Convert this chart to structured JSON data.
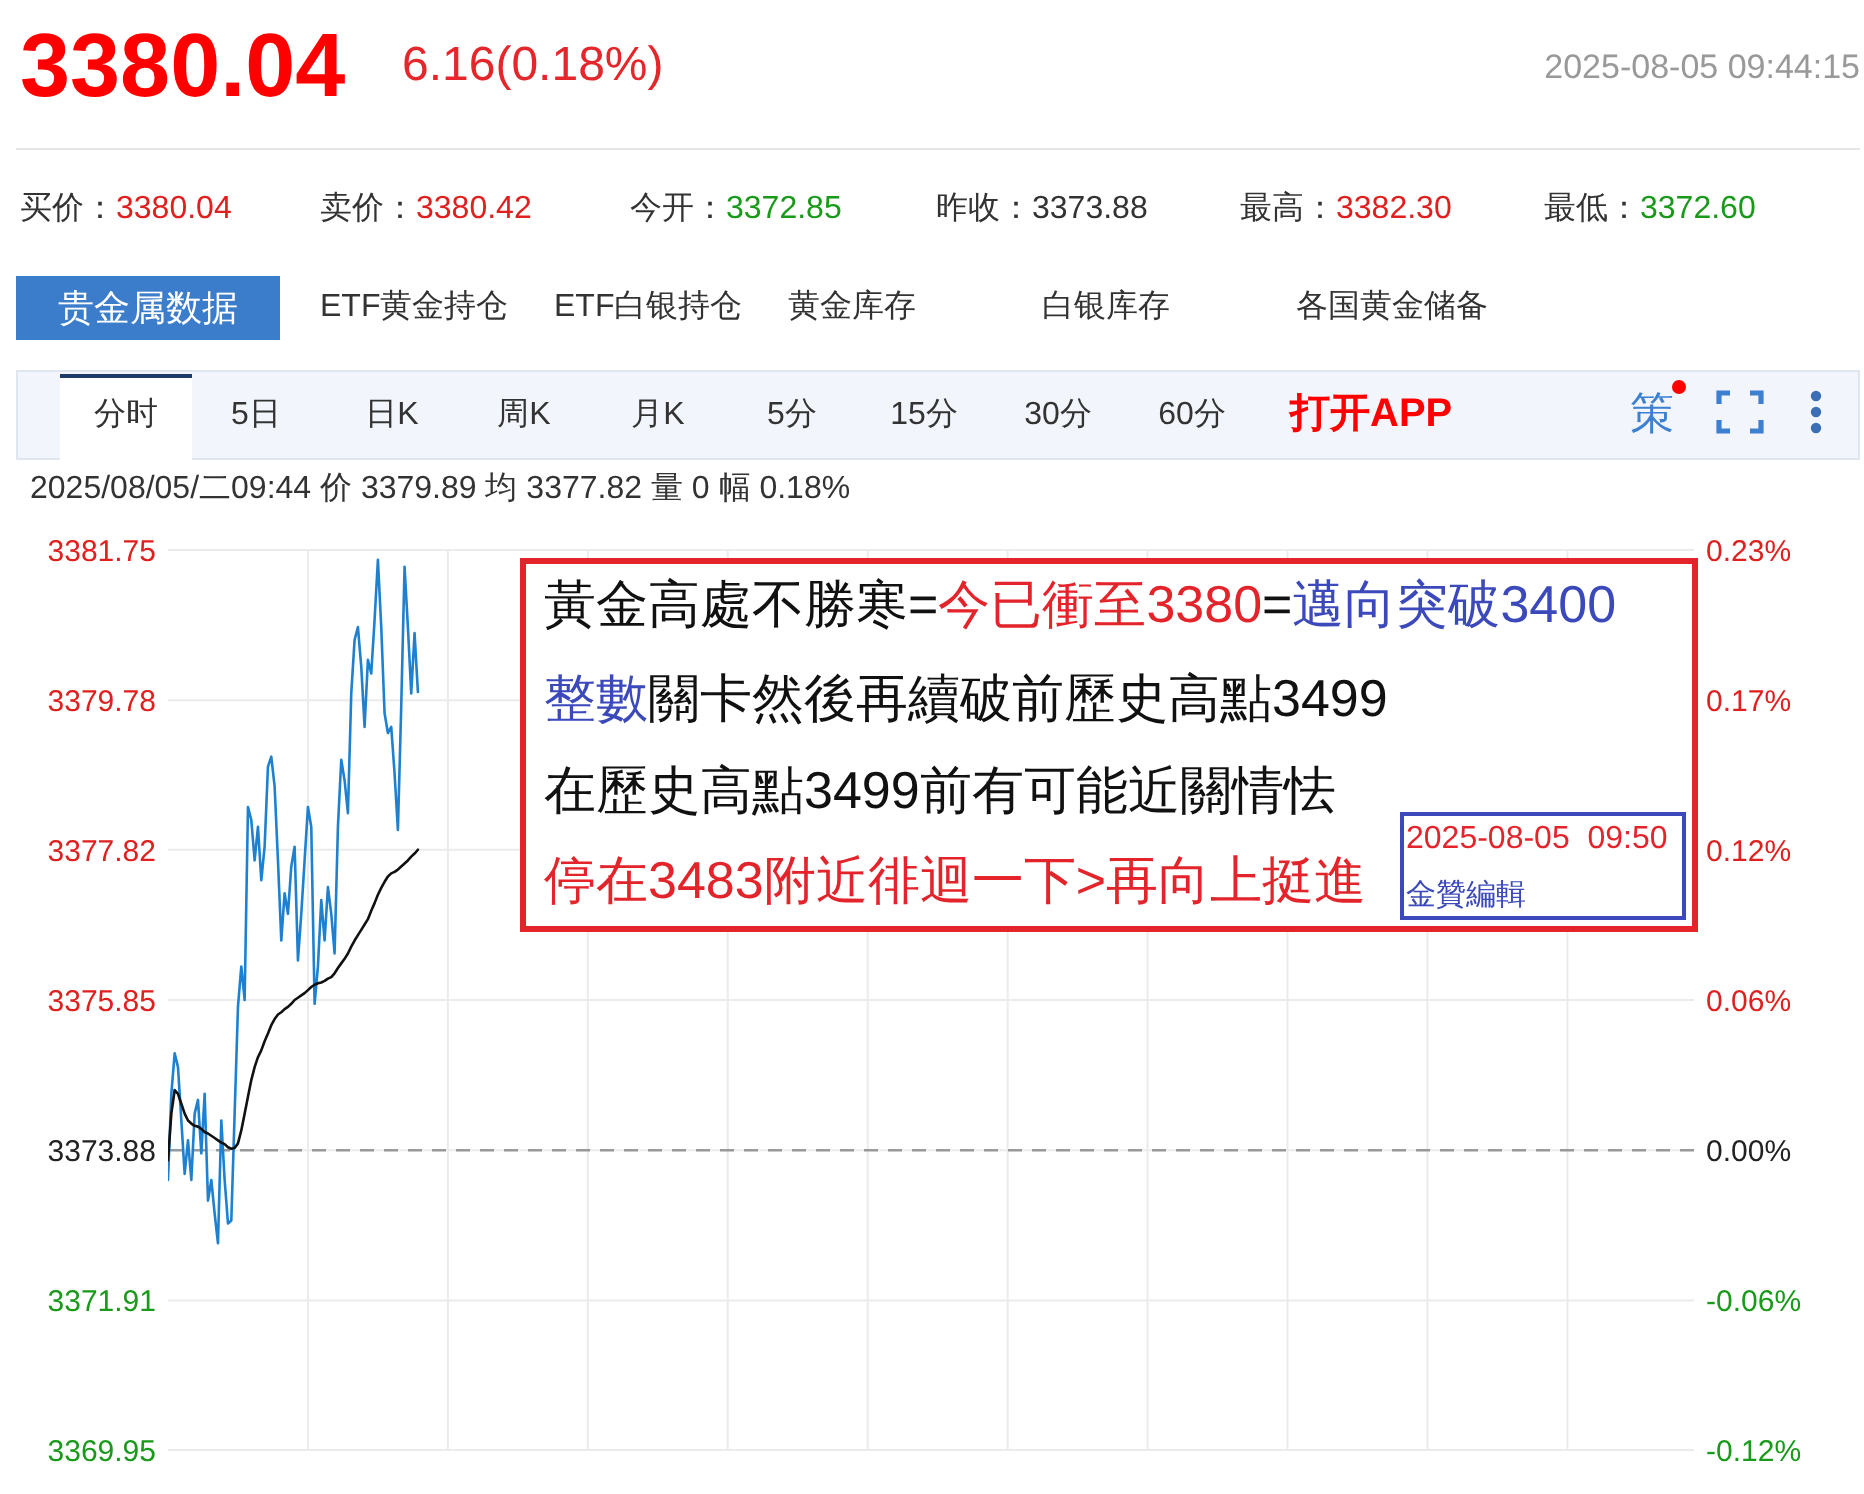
{
  "chart_data": [
    {
      "type": "other",
      "title": "3380.04",
      "subtitle": "6.16(0.18%)",
      "annotations": [
        "2025-08-05 09:44:15",
        "买价：",
        "3380.04",
        "卖价：",
        "3380.42",
        "今开：",
        "3372.85",
        "昨收：",
        "3373.88",
        "最高：",
        "3382.30",
        "最低：",
        "3372.60",
        "贵金属数据",
        "ETF黄金持仓",
        "ETF白银持仓",
        "黄金库存",
        "白银库存",
        "各国黄金储备",
        "分时",
        "5日",
        "日K",
        "周K",
        "月K",
        "5分",
        "15分",
        "30分",
        "60分",
        "打开APP",
        "策"
      ]
    },
    {
      "type": "line",
      "annotations": [
        "2025/08/05/二09:44 价 3379.89 均 3377.82 量 0 幅 0.18%",
        "黃金高處不勝寒=",
        "今已衝至3380",
        "=",
        "邁向突破3400",
        "整數",
        "關卡然後再續破前歷史高點3499",
        "在歷史高點3499前有可能近關情怯",
        "停在3483附近徘迴一下>再向上挺進",
        "2025-08-05  09:50",
        "金贊編輯"
      ],
      "categories": [
        null,
        null,
        null,
        null,
        null,
        null,
        null,
        null,
        null,
        null,
        null,
        null,
        null,
        null,
        null,
        null,
        null,
        null,
        null,
        null,
        null,
        null,
        null,
        null,
        null,
        null,
        null,
        null,
        null,
        null,
        null,
        null,
        null,
        null,
        null,
        null,
        null,
        null,
        null,
        null,
        null,
        null,
        null,
        null,
        null,
        null,
        null,
        null,
        null,
        null,
        null,
        null,
        null,
        null,
        null,
        null,
        null,
        null,
        null,
        null,
        null,
        null,
        null,
        null,
        null,
        null,
        null,
        null,
        null,
        null,
        null,
        null,
        null,
        null,
        null,
        null,
        null,
        null,
        null,
        null,
        null,
        null,
        null,
        null,
        null,
        null,
        null,
        null,
        null,
        null,
        null,
        null,
        null,
        null,
        null,
        null,
        null,
        null,
        null,
        null,
        null,
        null,
        null,
        null,
        null,
        null,
        null,
        null,
        null,
        null,
        null,
        null,
        null,
        null,
        null,
        null,
        null,
        null,
        null,
        null,
        null,
        null,
        null,
        null,
        null,
        null,
        null,
        null,
        null,
        null,
        null,
        null,
        null,
        null,
        null,
        null,
        null,
        null,
        null,
        null,
        null,
        null,
        null,
        null,
        null,
        null,
        null,
        null,
        null,
        null,
        null,
        null,
        null,
        null,
        null,
        null,
        null,
        null,
        null,
        null,
        null,
        null,
        null,
        null,
        null,
        null,
        null,
        null,
        null,
        null,
        null,
        null,
        null,
        null,
        null,
        null,
        null,
        null,
        null,
        null,
        null,
        null,
        null,
        null,
        null,
        null,
        null,
        null,
        null,
        null,
        null,
        null,
        null,
        null,
        null,
        null,
        null,
        null,
        null,
        null,
        null,
        null,
        null,
        null,
        null,
        null,
        null,
        null,
        null,
        null,
        null,
        null,
        null,
        null,
        null,
        null,
        null,
        null,
        null,
        null,
        null,
        null,
        null,
        null,
        null,
        null,
        null,
        null,
        null,
        null,
        null,
        null,
        null,
        null,
        null,
        null,
        null,
        null,
        null,
        null,
        null,
        null,
        null,
        null,
        null,
        null,
        null,
        null,
        null,
        null,
        null,
        null,
        null,
        null,
        null,
        null,
        null,
        null,
        null,
        null,
        null,
        null,
        null,
        null,
        null,
        null,
        null,
        null,
        null,
        null,
        null,
        null,
        null,
        null,
        null,
        null,
        null,
        null,
        null,
        null,
        null,
        null,
        null,
        null,
        null,
        null,
        null,
        null,
        null,
        null,
        null,
        null,
        null,
        null,
        null,
        null,
        null,
        null,
        null,
        null,
        null,
        null,
        null,
        null,
        null,
        null,
        null,
        null,
        null,
        null,
        null,
        null,
        null,
        null,
        null,
        null,
        null,
        null,
        null,
        null,
        null,
        null,
        null,
        null,
        null,
        null,
        null,
        null,
        null,
        null,
        null,
        null,
        null,
        null,
        null,
        null,
        null,
        null,
        null,
        null,
        null,
        null,
        null,
        null,
        null,
        null,
        null,
        null,
        null,
        null,
        null,
        null,
        null,
        null,
        null,
        null,
        null,
        null,
        null,
        null,
        null,
        null,
        null,
        null,
        null,
        null,
        null,
        null,
        null,
        null,
        null,
        null,
        null,
        null,
        null,
        null,
        null,
        null,
        null,
        null,
        null,
        null,
        null,
        null,
        null,
        null,
        null,
        null,
        null,
        null,
        null,
        null,
        null,
        null,
        null,
        null,
        null,
        null,
        null,
        null,
        null,
        null,
        null,
        null,
        null,
        null,
        null,
        null,
        null,
        null,
        null,
        null,
        null,
        null,
        null,
        null,
        null,
        null,
        null,
        null,
        null,
        null,
        null,
        null,
        null,
        null,
        null,
        null,
        null,
        null,
        null,
        null,
        null,
        null,
        null,
        null,
        null,
        null,
        null,
        null,
        null,
        null,
        null,
        null,
        null,
        null,
        null,
        null,
        null,
        null,
        null,
        null,
        null,
        null,
        null,
        null,
        null,
        null,
        null
      ],
      "series": [
        {
          "color": "#1e80cf",
          "values": [
            3373.49,
            3374.62,
            3375.15,
            3374.97,
            3374.27,
            3373.57,
            3374.01,
            3373.49,
            3374.36,
            3374.54,
            3373.84,
            3374.62,
            3373.22,
            3373.49,
            3373.05,
            3372.66,
            3374.27,
            3373.49,
            3372.92,
            3372.96,
            3374.36,
            3375.76,
            3376.29,
            3375.85,
            3378.38,
            3378.21,
            3377.68,
            3378.12,
            3377.42,
            3377.86,
            3378.91,
            3379.04,
            3378.65,
            3377.68,
            3376.63,
            3377.25,
            3376.98,
            3377.6,
            3377.86,
            3376.37,
            3376.98,
            3377.68,
            3378.38,
            3378.12,
            3375.8,
            3376.29,
            3377.16,
            3376.63,
            3377.33,
            3376.98,
            3376.46,
            3378.12,
            3379.0,
            3378.73,
            3378.3,
            3379.87,
            3380.57,
            3380.74,
            3380.22,
            3379.43,
            3380.31,
            3380.13,
            3380.83,
            3381.62,
            3380.74,
            3379.61,
            3379.35,
            3379.43,
            3378.82,
            3378.08,
            3379.7,
            3381.53,
            3380.74,
            3379.87,
            3380.66,
            3379.89,
            null,
            null,
            null,
            null,
            null,
            null,
            null,
            null,
            null,
            null,
            null,
            null,
            null,
            null,
            null,
            null,
            null,
            null,
            null,
            null,
            null,
            null,
            null,
            null,
            null,
            null,
            null,
            null,
            null,
            null,
            null,
            null,
            null,
            null,
            null,
            null,
            null,
            null,
            null,
            null,
            null,
            null,
            null,
            null,
            null,
            null,
            null,
            null,
            null,
            null,
            null,
            null,
            null,
            null,
            null,
            null,
            null,
            null,
            null,
            null,
            null,
            null,
            null,
            null,
            null,
            null,
            null,
            null,
            null,
            null,
            null,
            null,
            null,
            null,
            null,
            null,
            null,
            null,
            null,
            null,
            null,
            null,
            null,
            null,
            null,
            null,
            null,
            null,
            null,
            null,
            null,
            null,
            null,
            null,
            null,
            null,
            null,
            null,
            null,
            null,
            null,
            null,
            null,
            null,
            null,
            null,
            null,
            null,
            null,
            null,
            null,
            null,
            null,
            null,
            null,
            null,
            null,
            null,
            null,
            null,
            null,
            null,
            null,
            null,
            null,
            null,
            null,
            null,
            null,
            null,
            null,
            null,
            null,
            null,
            null,
            null,
            null,
            null,
            null,
            null,
            null,
            null,
            null,
            null,
            null,
            null,
            null,
            null,
            null,
            null,
            null,
            null,
            null,
            null,
            null,
            null,
            null,
            null,
            null,
            null,
            null,
            null,
            null,
            null,
            null,
            null,
            null,
            null,
            null,
            null,
            null,
            null,
            null,
            null,
            null,
            null,
            null,
            null,
            null,
            null,
            null,
            null,
            null,
            null,
            null,
            null,
            null,
            null,
            null,
            null,
            null,
            null,
            null,
            null,
            null,
            null,
            null,
            null,
            null,
            null,
            null,
            null,
            null,
            null,
            null,
            null,
            null,
            null,
            null,
            null,
            null,
            null,
            null,
            null,
            null,
            null,
            null,
            null,
            null,
            null,
            null,
            null,
            null,
            null,
            null,
            null,
            null,
            null,
            null,
            null,
            null,
            null,
            null,
            null,
            null,
            null,
            null,
            null,
            null,
            null,
            null,
            null,
            null,
            null,
            null,
            null,
            null,
            null,
            null,
            null,
            null,
            null,
            null,
            null,
            null,
            null,
            null,
            null,
            null,
            null,
            null,
            null,
            null,
            null,
            null,
            null,
            null,
            null,
            null,
            null,
            null,
            null,
            null,
            null,
            null,
            null,
            null,
            null,
            null,
            null,
            null,
            null,
            null,
            null,
            null,
            null,
            null,
            null,
            null,
            null,
            null,
            null,
            null,
            null,
            null,
            null,
            null,
            null,
            null,
            null,
            null,
            null,
            null,
            null,
            null,
            null,
            null,
            null,
            null,
            null,
            null,
            null,
            null,
            null,
            null,
            null,
            null,
            null,
            null,
            null,
            null,
            null,
            null,
            null,
            null,
            null,
            null,
            null,
            null,
            null,
            null,
            null,
            null,
            null,
            null,
            null,
            null,
            null,
            null,
            null,
            null,
            null,
            null,
            null,
            null,
            null,
            null,
            null,
            null,
            null,
            null,
            null,
            null,
            null,
            null,
            null,
            null,
            null,
            null,
            null,
            null,
            null,
            null,
            null,
            null,
            null,
            null,
            null,
            null,
            null,
            null,
            null,
            null,
            null,
            null,
            null,
            null,
            null,
            null,
            null,
            null,
            null,
            null
          ]
        },
        {
          "color": "#111111",
          "values": [
            3373.75,
            3374.36,
            3374.67,
            3374.62,
            3374.49,
            3374.36,
            3374.27,
            3374.23,
            3374.2,
            3374.19,
            3374.16,
            3374.12,
            3374.1,
            3374.07,
            3374.04,
            3374.01,
            3373.98,
            3373.96,
            3373.92,
            3373.9,
            3373.91,
            3373.97,
            3374.14,
            3374.36,
            3374.58,
            3374.8,
            3374.97,
            3375.1,
            3375.19,
            3375.31,
            3375.41,
            3375.52,
            3375.6,
            3375.66,
            3375.69,
            3375.73,
            3375.76,
            3375.8,
            3375.85,
            3375.88,
            3375.91,
            3375.94,
            3375.98,
            3376.02,
            3376.05,
            3376.07,
            3376.08,
            3376.1,
            3376.13,
            3376.15,
            3376.2,
            3376.27,
            3376.33,
            3376.39,
            3376.46,
            3376.55,
            3376.63,
            3376.7,
            3376.77,
            3376.84,
            3376.91,
            3377.02,
            3377.12,
            3377.23,
            3377.32,
            3377.4,
            3377.47,
            3377.51,
            3377.53,
            3377.56,
            3377.6,
            3377.64,
            3377.68,
            3377.73,
            3377.77,
            3377.82,
            null,
            null,
            null,
            null,
            null,
            null,
            null,
            null,
            null,
            null,
            null,
            null,
            null,
            null,
            null,
            null,
            null,
            null,
            null,
            null,
            null,
            null,
            null,
            null,
            null,
            null,
            null,
            null,
            null,
            null,
            null,
            null,
            null,
            null,
            null,
            null,
            null,
            null,
            null,
            null,
            null,
            null,
            null,
            null,
            null,
            null,
            null,
            null,
            null,
            null,
            null,
            null,
            null,
            null,
            null,
            null,
            null,
            null,
            null,
            null,
            null,
            null,
            null,
            null,
            null,
            null,
            null,
            null,
            null,
            null,
            null,
            null,
            null,
            null,
            null,
            null,
            null,
            null,
            null,
            null,
            null,
            null,
            null,
            null,
            null,
            null,
            null,
            null,
            null,
            null,
            null,
            null,
            null,
            null,
            null,
            null,
            null,
            null,
            null,
            null,
            null,
            null,
            null,
            null,
            null,
            null,
            null,
            null,
            null,
            null,
            null,
            null,
            null,
            null,
            null,
            null,
            null,
            null,
            null,
            null,
            null,
            null,
            null,
            null,
            null,
            null,
            null,
            null,
            null,
            null,
            null,
            null,
            null,
            null,
            null,
            null,
            null,
            null,
            null,
            null,
            null,
            null,
            null,
            null,
            null,
            null,
            null,
            null,
            null,
            null,
            null,
            null,
            null,
            null,
            null,
            null,
            null,
            null,
            null,
            null,
            null,
            null,
            null,
            null,
            null,
            null,
            null,
            null,
            null,
            null,
            null,
            null,
            null,
            null,
            null,
            null,
            null,
            null,
            null,
            null,
            null,
            null,
            null,
            null,
            null,
            null,
            null,
            null,
            null,
            null,
            null,
            null,
            null,
            null,
            null,
            null,
            null,
            null,
            null,
            null,
            null,
            null,
            null,
            null,
            null,
            null,
            null,
            null,
            null,
            null,
            null,
            null,
            null,
            null,
            null,
            null,
            null,
            null,
            null,
            null,
            null,
            null,
            null,
            null,
            null,
            null,
            null,
            null,
            null,
            null,
            null,
            null,
            null,
            null,
            null,
            null,
            null,
            null,
            null,
            null,
            null,
            null,
            null,
            null,
            null,
            null,
            null,
            null,
            null,
            null,
            null,
            null,
            null,
            null,
            null,
            null,
            null,
            null,
            null,
            null,
            null,
            null,
            null,
            null,
            null,
            null,
            null,
            null,
            null,
            null,
            null,
            null,
            null,
            null,
            null,
            null,
            null,
            null,
            null,
            null,
            null,
            null,
            null,
            null,
            null,
            null,
            null,
            null,
            null,
            null,
            null,
            null,
            null,
            null,
            null,
            null,
            null,
            null,
            null,
            null,
            null,
            null,
            null,
            null,
            null,
            null,
            null,
            null,
            null,
            null,
            null,
            null,
            null,
            null,
            null,
            null,
            null,
            null,
            null,
            null,
            null,
            null,
            null,
            null,
            null,
            null,
            null,
            null,
            null,
            null,
            null,
            null,
            null,
            null,
            null,
            null,
            null,
            null,
            null,
            null,
            null,
            null,
            null,
            null,
            null,
            null,
            null,
            null,
            null,
            null,
            null,
            null,
            null,
            null,
            null,
            null,
            null,
            null,
            null,
            null,
            null,
            null,
            null,
            null,
            null,
            null,
            null,
            null,
            null,
            null,
            null,
            null,
            null,
            null,
            null,
            null,
            null,
            null,
            null,
            null,
            null,
            null,
            null
          ]
        }
      ],
      "ylim": [
        3369.95,
        3381.75
      ],
      "yticks": [
        3369.95,
        3371.91,
        3373.88,
        3375.85,
        3377.82,
        3379.78,
        3381.75
      ],
      "y2lim": [
        -0.1165,
        0.2333
      ],
      "y2ticks": [
        {
          "value": -0.1165,
          "label": "-0.12%"
        },
        {
          "value": -0.0584,
          "label": "-0.06%"
        },
        {
          "value": 0,
          "label": "0.00%"
        },
        {
          "value": 0.0584,
          "label": "0.06%"
        },
        {
          "value": 0.1168,
          "label": "0.12%"
        },
        {
          "value": 0.1749,
          "label": "0.17%"
        },
        {
          "value": 0.2333,
          "label": "0.23%"
        }
      ],
      "ref_lines": [
        {
          "axis": "y",
          "value": 3373.88,
          "color": "#999999",
          "line_style": "dashed"
        }
      ],
      "grid": true,
      "tick_labels": "y"
    }
  ]
}
